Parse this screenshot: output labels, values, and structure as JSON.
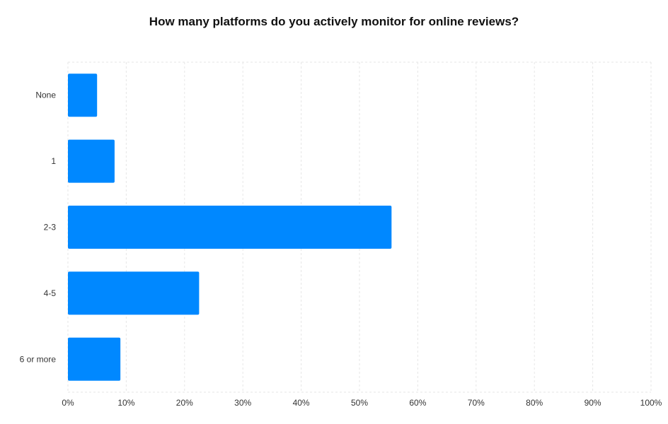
{
  "chart_data": {
    "type": "bar",
    "orientation": "horizontal",
    "title": "How many platforms do you actively monitor for online reviews?",
    "categories": [
      "None",
      "1",
      "2-3",
      "4-5",
      "6 or more"
    ],
    "values": [
      5,
      8,
      55.5,
      22.5,
      9
    ],
    "xlim": [
      0,
      100
    ],
    "x_ticks": [
      0,
      10,
      20,
      30,
      40,
      50,
      60,
      70,
      80,
      90,
      100
    ],
    "x_tick_labels": [
      "0%",
      "10%",
      "20%",
      "30%",
      "40%",
      "50%",
      "60%",
      "70%",
      "80%",
      "90%",
      "100%"
    ],
    "grid": true,
    "bar_color": "#0088FF",
    "grid_color": "#E6E6E6",
    "xlabel": "",
    "ylabel": ""
  }
}
